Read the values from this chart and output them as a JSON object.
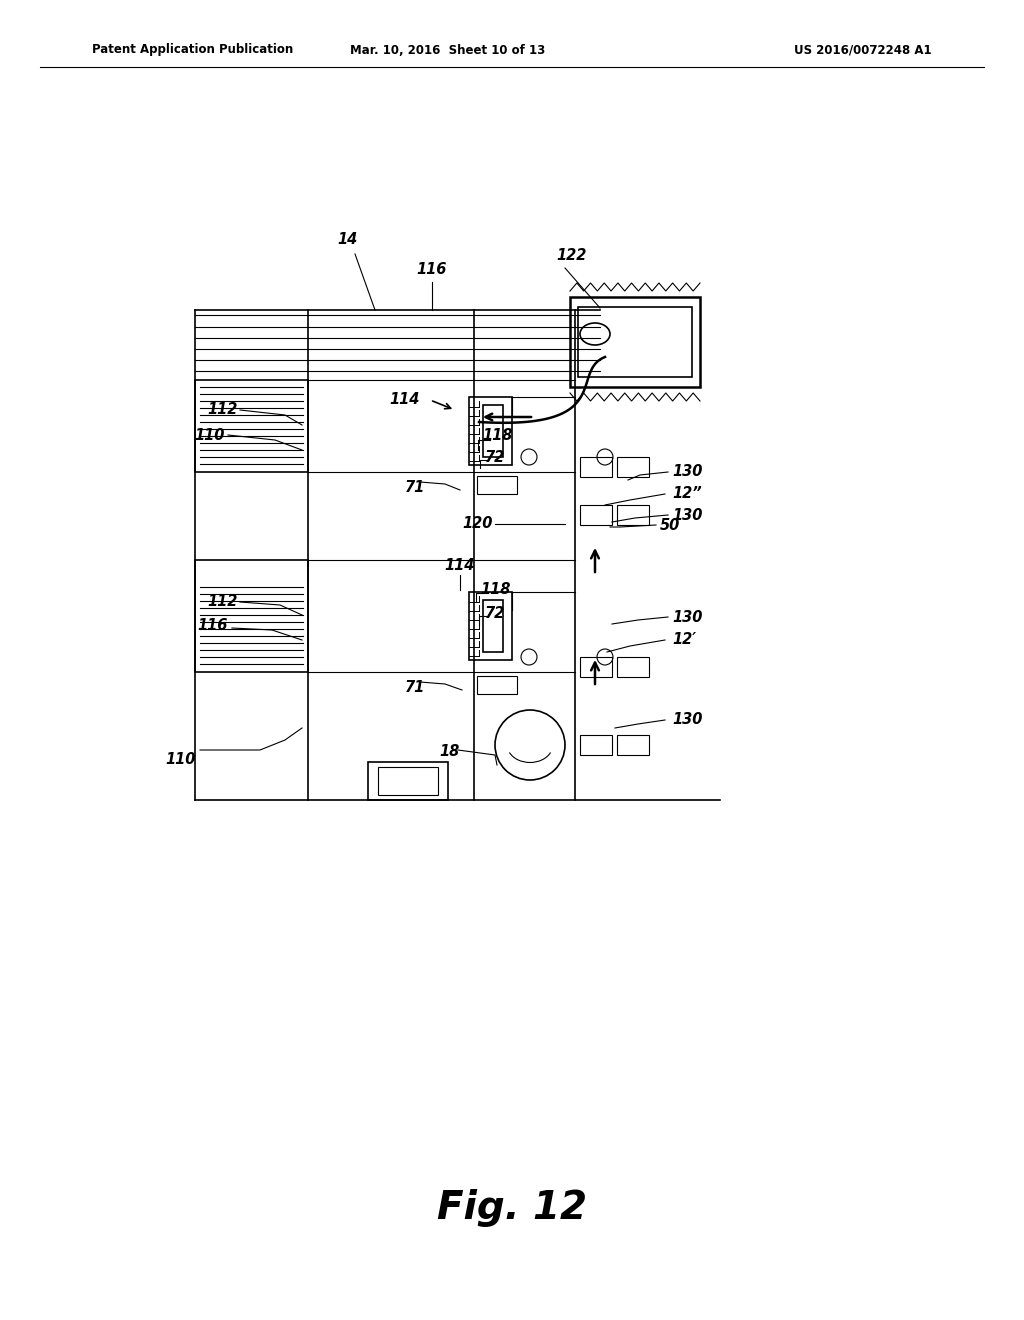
{
  "bg_color": "#ffffff",
  "header_left": "Patent Application Publication",
  "header_mid": "Mar. 10, 2016  Sheet 10 of 13",
  "header_right": "US 2016/0072248 A1",
  "fig_label": "Fig. 12"
}
